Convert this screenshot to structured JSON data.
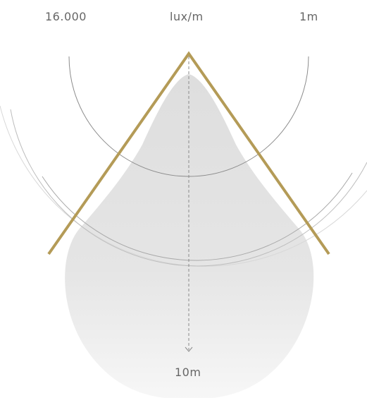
{
  "header": {
    "value": "16.000",
    "unit": "lux/m",
    "distance": "1m"
  },
  "axis": {
    "distance_label": "10m"
  },
  "colors": {
    "background": "#ffffff",
    "beam_outline": "#b49b57",
    "beam_fill_top": "#dedede",
    "beam_fill_bottom": "#f7f7f7",
    "ring_inner": "#8c8c8c",
    "ring_middle": "#bdbdbd",
    "ring_outer": "#d8d8d8",
    "axis_line": "#8a8a8a",
    "text": "#666666"
  },
  "icons": {
    "axis_arrow": "chevron-down-icon"
  }
}
